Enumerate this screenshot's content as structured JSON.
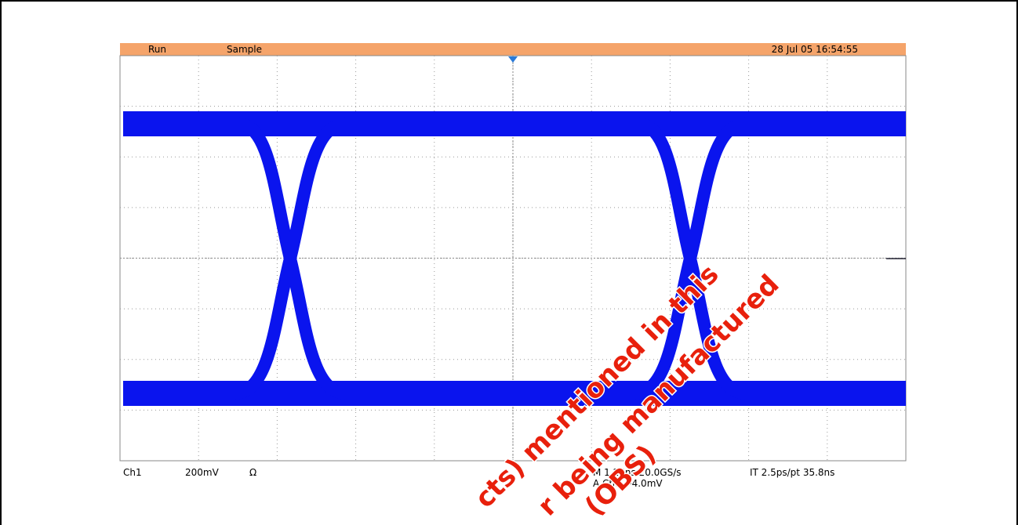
{
  "status_bar": {
    "mode": "Run",
    "acquisition": "Sample",
    "timestamp": "28 Jul 05 16:54:55"
  },
  "readout": {
    "channel": "Ch1",
    "scale": "200mV",
    "coupling": "Ω",
    "timebase": "M 1.25ns 20.0GS/s",
    "interpolation": "IT 2.5ps/pt 35.8ns",
    "trigger": "A  Ch1  ⁄  -4.0mV"
  },
  "watermark": [
    "cts) mentioned in this",
    "r being manufactured",
    "(OBS)"
  ]
}
